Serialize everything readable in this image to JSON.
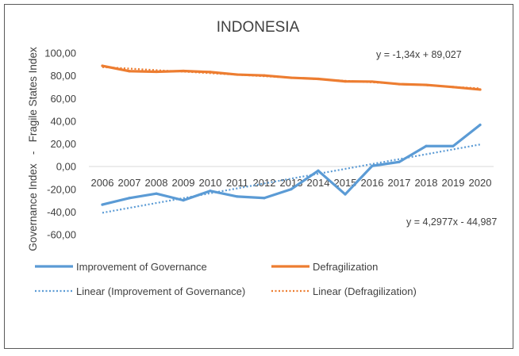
{
  "chart_data": {
    "type": "line",
    "title": "INDONESIA",
    "ylabel": "Governance Index   -   Fragile States Index",
    "xlabel": "",
    "ylim": [
      -60,
      100
    ],
    "y_ticks": [
      "100,00",
      "80,00",
      "60,00",
      "40,00",
      "20,00",
      "0,00",
      "-20,00",
      "-40,00",
      "-60,00"
    ],
    "categories": [
      "2006",
      "2007",
      "2008",
      "2009",
      "2010",
      "2011",
      "2012",
      "2013",
      "2014",
      "2015",
      "2016",
      "2017",
      "2018",
      "2019",
      "2020"
    ],
    "series": [
      {
        "name": "Improvement of Governance",
        "color": "#5B9BD5",
        "values": [
          -33.5,
          -27.7,
          -23.8,
          -29.7,
          -21.4,
          -26.4,
          -27.7,
          -19.9,
          -3.6,
          -24.4,
          0.6,
          4.1,
          18.1,
          18.1,
          36.8
        ]
      },
      {
        "name": "Defragilization",
        "color": "#ED7D31",
        "values": [
          88.8,
          84.1,
          83.6,
          84.3,
          83.3,
          81.1,
          80.3,
          78.3,
          77.3,
          75.1,
          74.9,
          72.7,
          72.0,
          70.1,
          67.9
        ]
      }
    ],
    "trendlines": [
      {
        "name": "Linear (Improvement of Governance)",
        "color": "#5B9BD5",
        "slope": 4.2977,
        "intercept": -44.987,
        "equation": "y = 4,2977x - 44,987"
      },
      {
        "name": "Linear (Defragilization)",
        "color": "#ED7D31",
        "slope": -1.34,
        "intercept": 89.027,
        "equation": "y = -1,34x + 89,027"
      }
    ],
    "grid": false,
    "legend_position": "bottom"
  }
}
